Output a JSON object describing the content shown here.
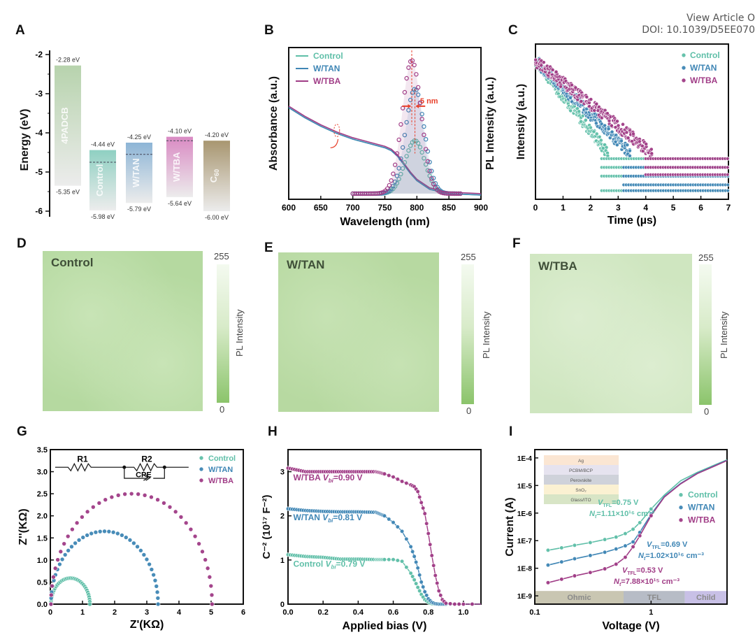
{
  "header": {
    "view_article": "View Article O",
    "doi": "DOI: 10.1039/D5EE070"
  },
  "panel_letters": [
    "A",
    "B",
    "C",
    "D",
    "E",
    "F",
    "G",
    "H",
    "I"
  ],
  "colors": {
    "control": "#5fbfa8",
    "w_tan": "#3f86b5",
    "w_tba": "#a03c86",
    "red": "#e8412c",
    "map_green": "#b9dca3"
  },
  "chart_data": [
    {
      "id": "A",
      "type": "bar",
      "title": "",
      "ylabel": "Energy (eV)",
      "ylim": [
        -6.25,
        -2
      ],
      "yticks": [
        -2,
        -3,
        -4,
        -5,
        -6
      ],
      "categories": [
        "4PADCB",
        "Control",
        "W/TAN",
        "W/TBA",
        "C60"
      ],
      "bars": [
        {
          "name": "4PADCB",
          "top": -2.28,
          "bottom": -5.35,
          "top_label": "-2.28 eV",
          "bottom_label": "-5.35 eV",
          "color": "#b7d3ad",
          "fermi": null
        },
        {
          "name": "Control",
          "top": -4.44,
          "bottom": -5.98,
          "top_label": "-4.44 eV",
          "bottom_label": "-5.98 eV",
          "color": "#8fd0c2",
          "fermi": -4.75
        },
        {
          "name": "W/TAN",
          "top": -4.25,
          "bottom": -5.79,
          "top_label": "-4.25 eV",
          "bottom_label": "-5.79 eV",
          "color": "#8db5d6",
          "fermi": -4.55
        },
        {
          "name": "W/TBA",
          "top": -4.1,
          "bottom": -5.64,
          "top_label": "-4.10 eV",
          "bottom_label": "-5.64 eV",
          "color": "#d98ac3",
          "fermi": -4.2
        },
        {
          "name": "C60",
          "top": -4.2,
          "bottom": -6.0,
          "top_label": "-4.20 eV",
          "bottom_label": "-6.00 eV",
          "color": "#a89670",
          "fermi": null
        }
      ]
    },
    {
      "id": "B",
      "type": "line",
      "xlabel": "Wavelength (nm)",
      "ylabel": "Absorbance (a.u.)",
      "ylabel_right": "PL Intensity (a.u.)",
      "xlim": [
        600,
        900
      ],
      "xticks": [
        600,
        650,
        700,
        750,
        800,
        850,
        900
      ],
      "legend": [
        "Control",
        "W/TAN",
        "W/TBA"
      ],
      "legend_position": "top-left",
      "annotation": "5 nm",
      "pl_peaks": [
        {
          "name": "Control",
          "center_nm": 797,
          "height": 0.37,
          "width_nm": 22
        },
        {
          "name": "W/TAN",
          "center_nm": 797,
          "height": 0.73,
          "width_nm": 21
        },
        {
          "name": "W/TBA",
          "center_nm": 792,
          "height": 0.93,
          "width_nm": 21
        }
      ],
      "absorbance": {
        "x": [
          600,
          625,
          650,
          675,
          700,
          725,
          750,
          760,
          770,
          780,
          790,
          800,
          820,
          850,
          900
        ],
        "series": [
          {
            "name": "Control",
            "values": [
              0.62,
              0.55,
              0.49,
              0.44,
              0.4,
              0.37,
              0.34,
              0.32,
              0.28,
              0.22,
              0.16,
              0.11,
              0.05,
              0.02,
              0.01
            ]
          },
          {
            "name": "W/TAN",
            "values": [
              0.62,
              0.55,
              0.49,
              0.44,
              0.4,
              0.37,
              0.34,
              0.32,
              0.28,
              0.22,
              0.16,
              0.11,
              0.05,
              0.02,
              0.01
            ]
          },
          {
            "name": "W/TBA",
            "values": [
              0.63,
              0.56,
              0.5,
              0.45,
              0.41,
              0.38,
              0.35,
              0.33,
              0.29,
              0.23,
              0.17,
              0.12,
              0.06,
              0.03,
              0.02
            ]
          }
        ]
      }
    },
    {
      "id": "C",
      "type": "scatter",
      "xlabel": "Time (µs)",
      "ylabel": "Intensity (a.u.)",
      "xlim": [
        0,
        7
      ],
      "xticks": [
        0,
        1,
        2,
        3,
        4,
        5,
        6,
        7
      ],
      "legend": [
        "Control",
        "W/TAN",
        "W/TBA"
      ],
      "legend_position": "top-right",
      "series": [
        {
          "name": "Control",
          "decay_end_us": 2.6,
          "floor_levels": [
            0.26,
            0.2,
            0.14,
            0.04
          ]
        },
        {
          "name": "W/TAN",
          "decay_end_us": 3.4,
          "floor_levels": [
            0.2,
            0.14,
            0.08,
            0.04
          ]
        },
        {
          "name": "W/TBA",
          "decay_end_us": 4.2,
          "floor_levels": [
            0.26,
            0.2,
            0.15
          ]
        }
      ]
    },
    {
      "id": "D",
      "type": "heatmap",
      "label": "Control",
      "colorbar_title": "PL Intensity",
      "colorbar_range": [
        0,
        255
      ],
      "relative_brightness": 0.35
    },
    {
      "id": "E",
      "type": "heatmap",
      "label": "W/TAN",
      "colorbar_title": "PL Intensity",
      "colorbar_range": [
        0,
        255
      ],
      "relative_brightness": 0.4
    },
    {
      "id": "F",
      "type": "heatmap",
      "label": "W/TBA",
      "colorbar_title": "PL Intensity",
      "colorbar_range": [
        0,
        255
      ],
      "relative_brightness": 0.7
    },
    {
      "id": "G",
      "type": "scatter",
      "xlabel": "Z'(KΩ)",
      "ylabel": "Z''(KΩ)",
      "xlim": [
        0,
        6
      ],
      "ylim": [
        0,
        3.5
      ],
      "xticks": [
        0,
        1,
        2,
        3,
        4,
        5,
        6
      ],
      "yticks": [
        0.0,
        0.5,
        1.0,
        1.5,
        2.0,
        2.5,
        3.0,
        3.5
      ],
      "legend": [
        "Control",
        "W/TAN",
        "W/TBA"
      ],
      "legend_position": "top-right",
      "circuit_labels": {
        "r1": "R1",
        "r2": "R2",
        "cpe": "CPE"
      },
      "series": [
        {
          "name": "Control",
          "r_start": 0.02,
          "r_end": 1.23,
          "peak": 0.59
        },
        {
          "name": "W/TAN",
          "r_start": 0.02,
          "r_end": 3.35,
          "peak": 1.65
        },
        {
          "name": "W/TBA",
          "r_start": 0.02,
          "r_end": 5.03,
          "peak": 2.5
        }
      ]
    },
    {
      "id": "H",
      "type": "line",
      "xlabel": "Applied bias (V)",
      "ylabel": "C⁻² (10¹⁷ F⁻²)",
      "xlim": [
        0,
        1.1
      ],
      "ylim": [
        0,
        3.5
      ],
      "xticks": [
        0.0,
        0.2,
        0.4,
        0.6,
        0.8,
        1.0
      ],
      "yticks": [
        0,
        1,
        2,
        3
      ],
      "annotations": [
        {
          "name": "W/TBA",
          "text": "W/TBA",
          "vbi": "=0.90 V"
        },
        {
          "name": "W/TAN",
          "text": "W/TAN",
          "vbi": "=0.81 V"
        },
        {
          "name": "Control",
          "text": "Control",
          "vbi": "=0.79 V"
        }
      ],
      "x": [
        0.0,
        0.1,
        0.2,
        0.3,
        0.4,
        0.5,
        0.55,
        0.6,
        0.65,
        0.7,
        0.72,
        0.74,
        0.76,
        0.78,
        0.8,
        0.82,
        0.84,
        0.86,
        0.88,
        0.9,
        0.95,
        1.0,
        1.1
      ],
      "series": [
        {
          "name": "Control",
          "values": [
            1.12,
            1.08,
            1.06,
            1.02,
            1.02,
            1.01,
            1.01,
            1.01,
            0.97,
            0.7,
            0.55,
            0.38,
            0.22,
            0.1,
            0.04,
            0.01,
            0,
            0,
            0,
            0,
            0,
            0,
            0
          ]
        },
        {
          "name": "W/TAN",
          "values": [
            2.16,
            2.12,
            2.1,
            2.09,
            2.09,
            2.08,
            2.0,
            1.85,
            1.65,
            1.3,
            1.08,
            0.82,
            0.5,
            0.28,
            0.12,
            0.04,
            0.01,
            0,
            0,
            0,
            0,
            0,
            0
          ]
        },
        {
          "name": "W/TBA",
          "values": [
            3.08,
            3.0,
            3.0,
            3.0,
            3.0,
            3.0,
            2.95,
            2.88,
            2.78,
            2.7,
            2.66,
            2.55,
            2.3,
            2.05,
            1.6,
            1.1,
            0.65,
            0.3,
            0.1,
            0.02,
            0,
            0,
            0
          ]
        }
      ]
    },
    {
      "id": "I",
      "type": "line",
      "xlabel": "Voltage (V)",
      "ylabel": "Current (A)",
      "xscale": "log",
      "yscale": "log",
      "xlim": [
        0.1,
        4.5
      ],
      "ylim": [
        5e-10,
        0.0002
      ],
      "xticks": [
        "0.1",
        "1"
      ],
      "yticks": [
        "1E-4",
        "1E-5",
        "1E-6",
        "1E-7",
        "1E-8",
        "1E-9"
      ],
      "legend": [
        "Control",
        "W/TAN",
        "W/TBA"
      ],
      "legend_position": "right",
      "regions": [
        "Ohmic",
        "TFL",
        "Child"
      ],
      "inset_layers": [
        "Ag",
        "PCBM/BCP",
        "Perovskite",
        "SnO₂",
        "Glass/ITO"
      ],
      "annotations": [
        {
          "name": "Control",
          "vtfl": "=0.75 V",
          "nt": "=1.11×10¹⁶ cm⁻³"
        },
        {
          "name": "W/TAN",
          "vtfl": "=0.69 V",
          "nt": "=1.02×10¹⁶ cm⁻³"
        },
        {
          "name": "W/TBA",
          "vtfl": "=0.53 V",
          "nt": "=7.88×10¹⁵ cm⁻³"
        }
      ],
      "x": [
        0.13,
        0.17,
        0.22,
        0.3,
        0.4,
        0.5,
        0.6,
        0.7,
        0.8,
        1.0,
        1.3,
        1.8,
        2.5,
        3.5,
        4.5
      ],
      "series": [
        {
          "name": "Control",
          "values": [
            4.5e-08,
            5.5e-08,
            6.8e-08,
            8.5e-08,
            1.1e-07,
            1.35e-07,
            1.8e-07,
            2.6e-07,
            4.5e-07,
            1.4e-06,
            4.5e-06,
            1.5e-05,
            3e-05,
            5.5e-05,
            8.5e-05
          ]
        },
        {
          "name": "W/TAN",
          "values": [
            1.3e-08,
            1.7e-08,
            2.2e-08,
            2.9e-08,
            3.8e-08,
            5e-08,
            6.5e-08,
            9e-08,
            2e-07,
            9e-07,
            4e-06,
            1.2e-05,
            2.8e-05,
            5.2e-05,
            8.2e-05
          ]
        },
        {
          "name": "W/TBA",
          "values": [
            3e-09,
            4e-09,
            5.3e-09,
            7e-09,
            9.5e-09,
            1.4e-08,
            2.5e-08,
            6e-08,
            1.5e-07,
            8e-07,
            3.8e-06,
            1.15e-05,
            2.7e-05,
            5e-05,
            8e-05
          ]
        }
      ]
    }
  ]
}
